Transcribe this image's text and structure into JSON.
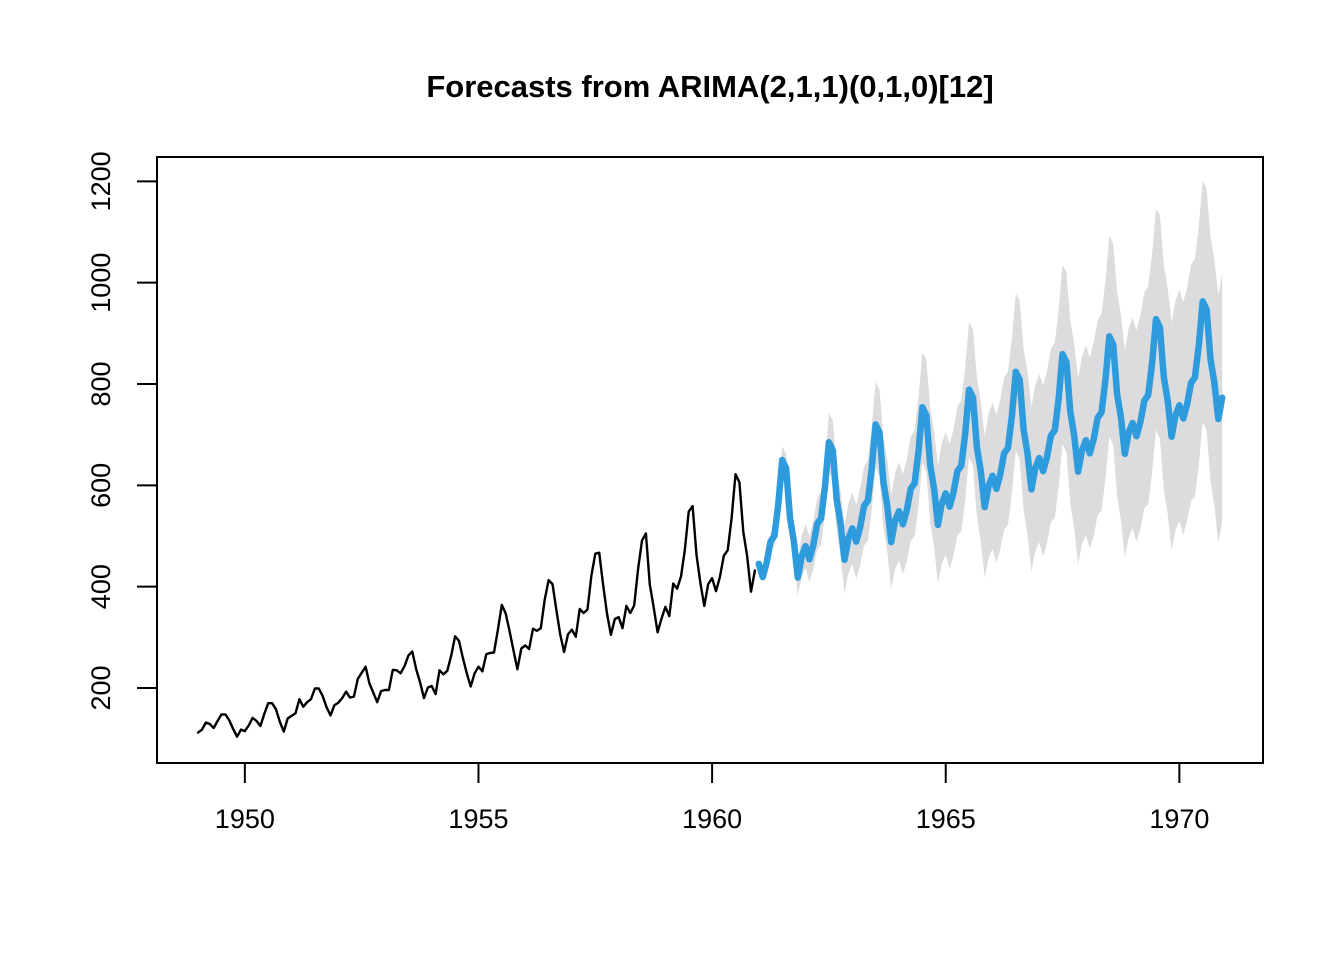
{
  "page": {
    "background": "#ffffff"
  },
  "chart_data": {
    "type": "line",
    "title": "Forecasts from ARIMA(2,1,1)(0,1,0)[12]",
    "xlabel": "",
    "ylabel": "",
    "grid": false,
    "legend": false,
    "x_axis": {
      "ticks": [
        1950,
        1955,
        1960,
        1965,
        1970
      ],
      "range": [
        1948.12,
        1971.79
      ]
    },
    "y_axis": {
      "ticks": [
        200,
        400,
        600,
        800,
        1000,
        1200
      ],
      "range": [
        52,
        1248
      ]
    },
    "colors": {
      "observed": "#000000",
      "forecast": "#2E9BDD",
      "interval": "#DCDCDF"
    },
    "series": [
      {
        "name": "observed",
        "type": "line",
        "color": "#000000",
        "start": 1949,
        "frequency": 12,
        "values": [
          112,
          118,
          132,
          129,
          121,
          135,
          148,
          148,
          136,
          119,
          104,
          118,
          115,
          126,
          141,
          135,
          125,
          149,
          170,
          170,
          158,
          133,
          114,
          140,
          145,
          150,
          178,
          163,
          172,
          178,
          199,
          199,
          184,
          162,
          146,
          166,
          171,
          180,
          193,
          181,
          183,
          218,
          230,
          242,
          209,
          191,
          172,
          194,
          196,
          196,
          236,
          235,
          229,
          243,
          264,
          272,
          237,
          211,
          180,
          201,
          204,
          188,
          235,
          227,
          234,
          264,
          302,
          293,
          259,
          229,
          203,
          229,
          242,
          233,
          267,
          269,
          270,
          315,
          364,
          347,
          312,
          274,
          237,
          278,
          284,
          277,
          317,
          313,
          318,
          374,
          413,
          405,
          355,
          306,
          271,
          306,
          315,
          301,
          356,
          348,
          355,
          422,
          465,
          467,
          404,
          347,
          305,
          336,
          340,
          318,
          362,
          348,
          363,
          435,
          491,
          505,
          404,
          359,
          310,
          337,
          360,
          342,
          406,
          396,
          420,
          472,
          548,
          559,
          463,
          407,
          362,
          405,
          417,
          391,
          419,
          461,
          472,
          535,
          622,
          606,
          508,
          461,
          390,
          432
        ]
      },
      {
        "name": "forecast-mean",
        "type": "line",
        "color": "#2E9BDD",
        "start": 1961,
        "frequency": 12,
        "values": [
          445,
          419,
          447,
          489,
          500,
          563,
          650,
          634,
          536,
          489,
          418,
          460,
          480,
          454,
          482,
          524,
          535,
          598,
          685,
          669,
          571,
          524,
          453,
          495,
          515,
          489,
          517,
          559,
          570,
          633,
          720,
          704,
          606,
          559,
          488,
          530,
          549,
          523,
          551,
          593,
          604,
          667,
          754,
          738,
          640,
          593,
          522,
          564,
          584,
          558,
          586,
          628,
          639,
          702,
          789,
          773,
          675,
          628,
          557,
          599,
          619,
          593,
          621,
          663,
          674,
          737,
          824,
          808,
          710,
          663,
          592,
          634,
          654,
          628,
          656,
          698,
          709,
          772,
          859,
          843,
          745,
          698,
          627,
          669,
          689,
          663,
          691,
          733,
          744,
          807,
          894,
          878,
          780,
          733,
          662,
          704,
          723,
          697,
          725,
          767,
          778,
          841,
          928,
          912,
          814,
          767,
          696,
          738,
          758,
          732,
          760,
          802,
          813,
          876,
          963,
          947,
          849,
          802,
          731,
          773
        ]
      },
      {
        "name": "prediction-interval",
        "type": "band",
        "color": "#DCDCDF",
        "start": 1961,
        "frequency": 12,
        "upper": [
          451,
          429,
          460,
          506,
          520,
          586,
          676,
          663,
          568,
          524,
          455,
          500,
          523,
          499,
          530,
          574,
          588,
          653,
          742,
          729,
          633,
          588,
          520,
          564,
          586,
          562,
          593,
          637,
          650,
          715,
          804,
          790,
          695,
          650,
          581,
          625,
          646,
          622,
          652,
          696,
          709,
          774,
          863,
          849,
          753,
          708,
          639,
          683,
          705,
          681,
          711,
          755,
          768,
          833,
          922,
          908,
          812,
          766,
          697,
          741,
          763,
          739,
          769,
          813,
          825,
          890,
          979,
          965,
          869,
          824,
          754,
          798,
          820,
          796,
          826,
          869,
          882,
          947,
          1036,
          1021,
          925,
          880,
          811,
          854,
          876,
          852,
          882,
          925,
          938,
          1003,
          1092,
          1077,
          981,
          936,
          866,
          910,
          931,
          906,
          936,
          980,
          993,
          1057,
          1146,
          1132,
          1035,
          990,
          921,
          964,
          986,
          962,
          991,
          1035,
          1047,
          1112,
          1201,
          1186,
          1090,
          1045,
          975,
          1019
        ],
        "lower": [
          439,
          409,
          434,
          472,
          480,
          540,
          624,
          605,
          504,
          454,
          381,
          420,
          437,
          409,
          434,
          474,
          482,
          543,
          628,
          609,
          509,
          460,
          386,
          426,
          444,
          415,
          441,
          481,
          490,
          551,
          636,
          617,
          517,
          468,
          395,
          435,
          452,
          424,
          450,
          490,
          499,
          560,
          645,
          627,
          527,
          478,
          405,
          445,
          463,
          435,
          461,
          501,
          510,
          571,
          656,
          638,
          538,
          490,
          417,
          457,
          475,
          447,
          473,
          513,
          522,
          584,
          669,
          651,
          551,
          502,
          430,
          470,
          488,
          460,
          486,
          527,
          536,
          597,
          682,
          664,
          565,
          516,
          443,
          484,
          502,
          474,
          500,
          541,
          550,
          611,
          696,
          679,
          579,
          530,
          458,
          498,
          515,
          488,
          514,
          554,
          563,
          625,
          710,
          692,
          593,
          544,
          471,
          512,
          530,
          502,
          529,
          569,
          578,
          640,
          725,
          708,
          608,
          559,
          487,
          527
        ]
      }
    ]
  }
}
